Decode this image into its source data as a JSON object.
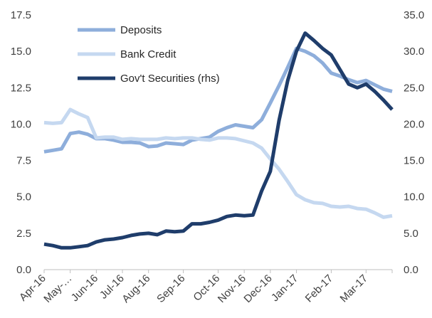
{
  "chart_data": {
    "type": "line",
    "title": "",
    "xlabel": "",
    "ylabel": "",
    "ylim": [
      0,
      17.5
    ],
    "y2lim": [
      0,
      35
    ],
    "y_ticks": [
      "0.0",
      "2.5",
      "5.0",
      "7.5",
      "10.0",
      "12.5",
      "15.0",
      "17.5"
    ],
    "y2_ticks": [
      "0.0",
      "5.0",
      "10.0",
      "15.0",
      "20.0",
      "25.0",
      "30.0",
      "35.0"
    ],
    "x_tick_labels": [
      "Apr-16",
      "May-…",
      "Jun-16",
      "Jul-16",
      "Aug-16",
      "Sep-16",
      "Oct-16",
      "Nov-16",
      "Dec-16",
      "Jan-17",
      "Feb-17",
      "Mar-17"
    ],
    "grid": false,
    "legend_position": "top-left",
    "x": [
      "Apr-16",
      "",
      "",
      "May-…",
      "",
      "",
      "Jun-16",
      "",
      "",
      "Jul-16",
      "",
      "",
      "Aug-16",
      "",
      "",
      "",
      "Sep-16",
      "",
      "",
      "",
      "Oct-16",
      "",
      "",
      "Nov-16",
      "",
      "",
      "Dec-16",
      "",
      "",
      "Jan-17",
      "",
      "",
      "",
      "Feb-17",
      "",
      "",
      "",
      "Mar-17",
      "",
      "",
      ""
    ],
    "series": [
      {
        "name": "Deposits",
        "axis": "left",
        "color": "#8eaedb",
        "values": [
          8.1,
          8.2,
          8.3,
          9.35,
          9.45,
          9.3,
          9.0,
          9.0,
          8.9,
          8.75,
          8.75,
          8.7,
          8.45,
          8.5,
          8.7,
          8.65,
          8.6,
          8.9,
          9.0,
          9.1,
          9.5,
          9.75,
          9.95,
          9.85,
          9.75,
          10.3,
          11.45,
          12.65,
          13.9,
          15.2,
          15.0,
          14.7,
          14.2,
          13.5,
          13.3,
          13.05,
          12.85,
          13.0,
          12.7,
          12.4,
          12.25
        ]
      },
      {
        "name": "Bank Credit",
        "axis": "left",
        "color": "#c5d8f0",
        "values": [
          10.1,
          10.05,
          10.1,
          11.0,
          10.7,
          10.45,
          9.05,
          9.1,
          9.1,
          8.95,
          9.0,
          8.95,
          8.95,
          8.95,
          9.05,
          9.0,
          9.05,
          9.05,
          8.95,
          8.9,
          9.05,
          9.05,
          9.0,
          8.85,
          8.7,
          8.35,
          7.6,
          6.9,
          6.05,
          5.15,
          4.8,
          4.6,
          4.55,
          4.35,
          4.3,
          4.35,
          4.2,
          4.15,
          3.9,
          3.6,
          3.7
        ]
      },
      {
        "name": "Gov't Securities (rhs)",
        "axis": "right",
        "color": "#1f3d6b",
        "values": [
          3.5,
          3.3,
          3.0,
          3.0,
          3.15,
          3.3,
          3.8,
          4.1,
          4.2,
          4.4,
          4.7,
          4.9,
          5.0,
          4.8,
          5.3,
          5.2,
          5.3,
          6.3,
          6.3,
          6.5,
          6.8,
          7.3,
          7.5,
          7.4,
          7.5,
          10.8,
          13.5,
          20.5,
          26.0,
          30.0,
          32.5,
          31.5,
          30.4,
          29.5,
          27.5,
          25.5,
          25.0,
          25.5,
          24.5,
          23.3,
          22.0
        ]
      }
    ]
  }
}
